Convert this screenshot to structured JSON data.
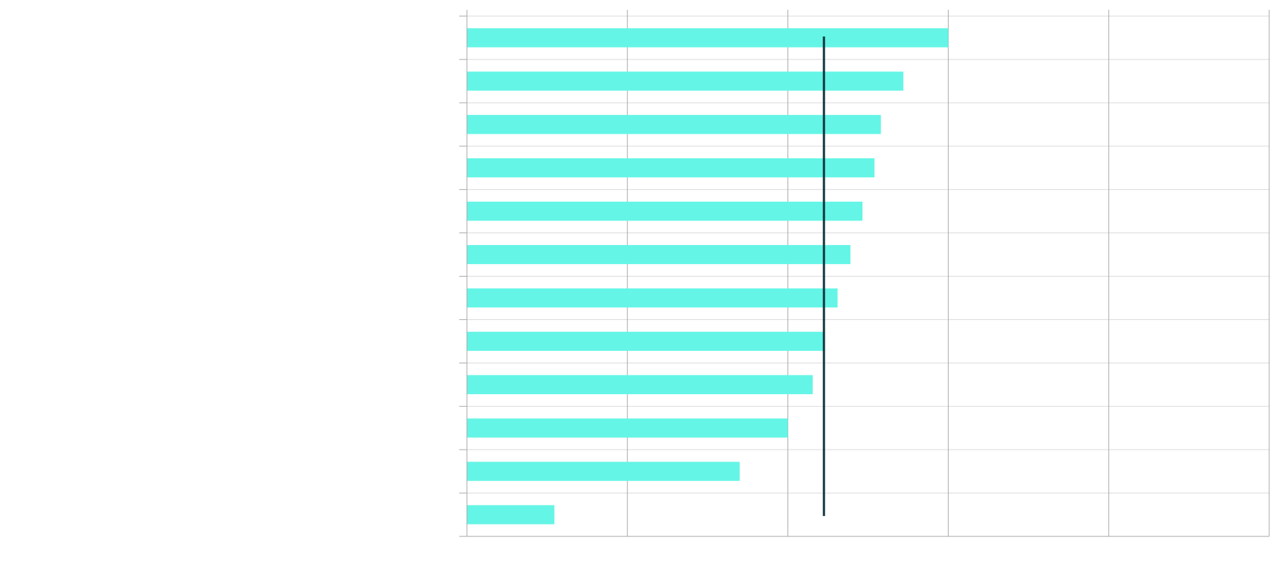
{
  "chart_data": {
    "type": "bar",
    "orientation": "horizontal",
    "title": "",
    "xlabel": "",
    "ylabel": "",
    "categories": [
      "",
      "",
      "",
      "",
      "",
      "",
      "",
      "",
      "",
      "",
      "",
      ""
    ],
    "values": [
      300,
      272,
      258,
      254,
      246.5,
      239,
      231,
      223,
      215.5,
      200,
      170,
      54.5
    ],
    "reference_line": {
      "value": 222.5
    },
    "xlim": [
      0,
      500
    ],
    "x_gridlines": [
      0,
      100,
      200,
      300,
      400,
      500
    ],
    "grid": true,
    "legend": "none",
    "colors": {
      "bar": "#64f5e6",
      "reference_line": "#0a2f3a",
      "grid": "#d9d9d9",
      "axis": "#a6a6a6"
    }
  }
}
